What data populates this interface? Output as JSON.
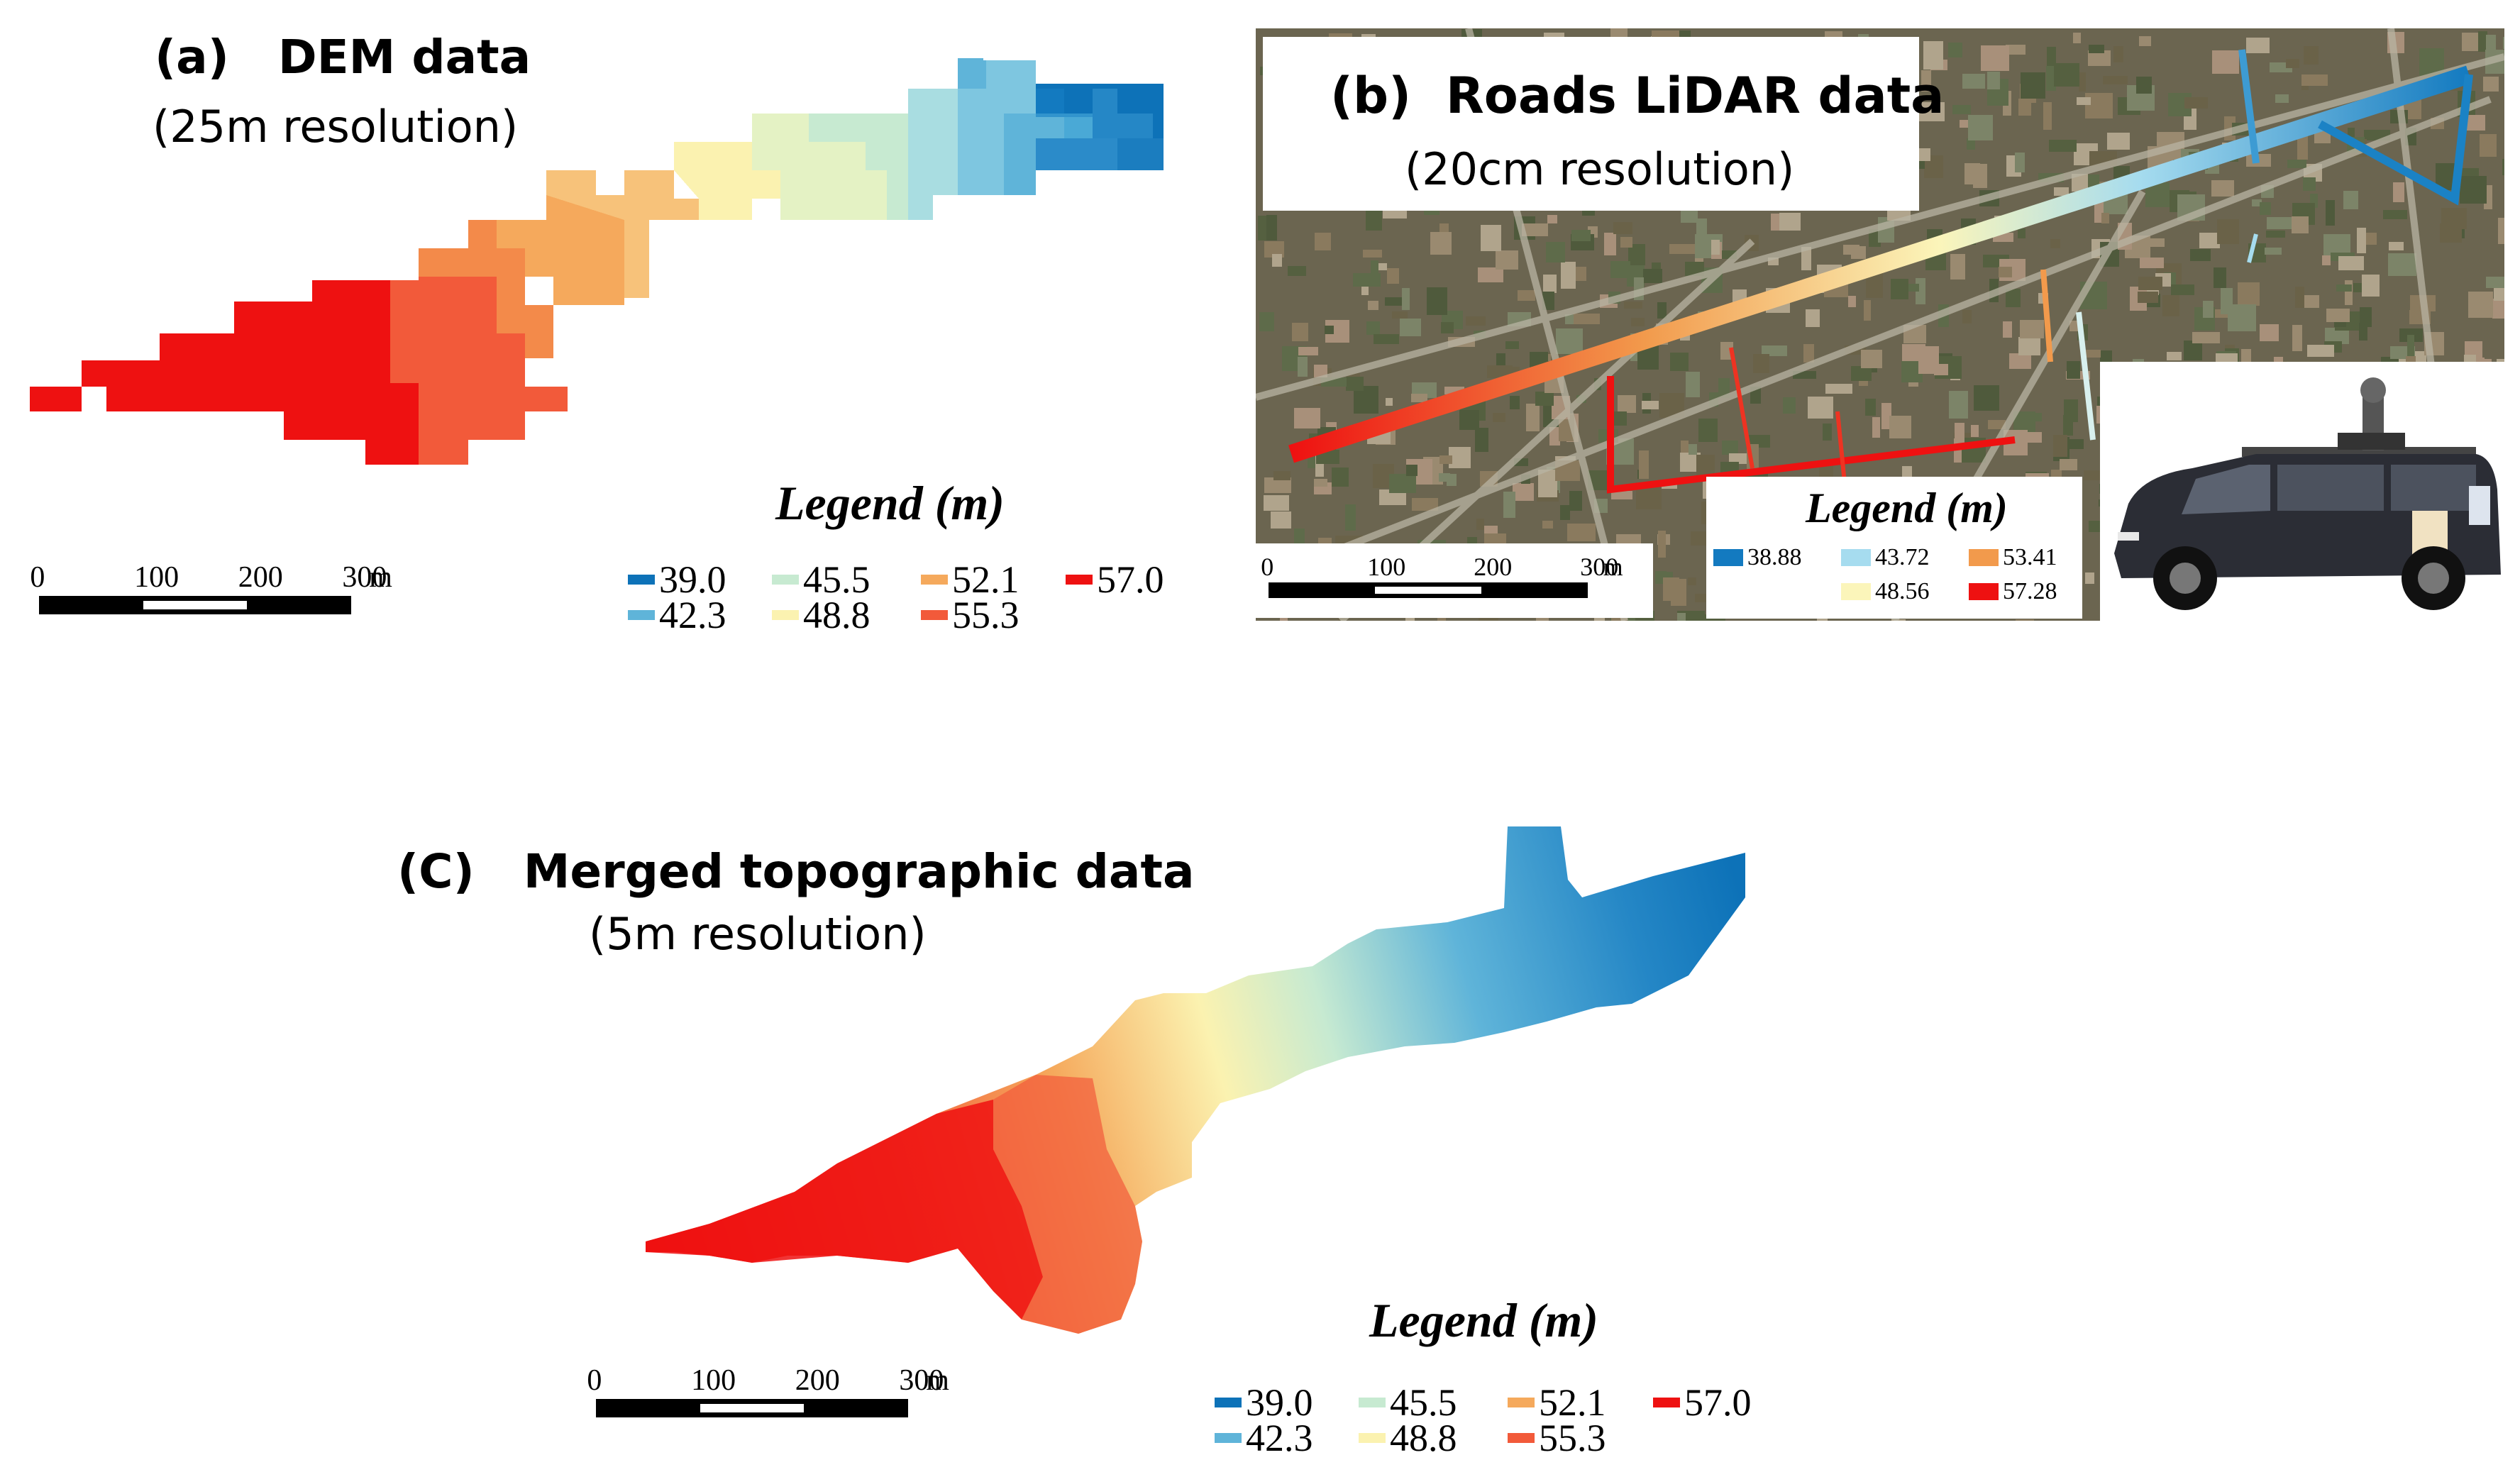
{
  "panel_a": {
    "label": "(a)",
    "title": "DEM data",
    "subtitle": "(25m resolution)",
    "legend_title": "Legend (m)",
    "legend": [
      {
        "value": "39.0",
        "color": "#0d72b8"
      },
      {
        "value": "45.5",
        "color": "#c7ead1"
      },
      {
        "value": "52.1",
        "color": "#f5a95c"
      },
      {
        "value": "57.0",
        "color": "#ee1111"
      },
      {
        "value": "42.3",
        "color": "#5fb4d9"
      },
      {
        "value": "48.8",
        "color": "#fbf2b0"
      },
      {
        "value": "55.3",
        "color": "#f25a3a"
      }
    ],
    "scale": {
      "ticks": [
        "0",
        "100",
        "200",
        "300"
      ],
      "unit": "m"
    }
  },
  "panel_b": {
    "label": "(b)",
    "title": "Roads LiDAR data",
    "subtitle": "(20cm resolution)",
    "legend_title": "Legend (m)",
    "legend": [
      {
        "value": "38.88",
        "color": "#137ac0"
      },
      {
        "value": "43.72",
        "color": "#a6dcef"
      },
      {
        "value": "53.41",
        "color": "#f29a4c"
      },
      {
        "value": "48.56",
        "color": "#fbf5ba"
      },
      {
        "value": "57.28",
        "color": "#ee1111"
      }
    ],
    "scale": {
      "ticks": [
        "0",
        "100",
        "200",
        "300"
      ],
      "unit": "m"
    },
    "inset": "mobile-mapping-vehicle"
  },
  "panel_c": {
    "label": "(C)",
    "title": "Merged topographic data",
    "subtitle": "(5m resolution)",
    "legend_title": "Legend (m)",
    "legend": [
      {
        "value": "39.0",
        "color": "#0d72b8"
      },
      {
        "value": "45.5",
        "color": "#c7ead1"
      },
      {
        "value": "52.1",
        "color": "#f5a95c"
      },
      {
        "value": "57.0",
        "color": "#ee1111"
      },
      {
        "value": "42.3",
        "color": "#5fb4d9"
      },
      {
        "value": "48.8",
        "color": "#fbf2b0"
      },
      {
        "value": "55.3",
        "color": "#f25a3a"
      }
    ],
    "scale": {
      "ticks": [
        "0",
        "100",
        "200",
        "300"
      ],
      "unit": "m"
    }
  }
}
